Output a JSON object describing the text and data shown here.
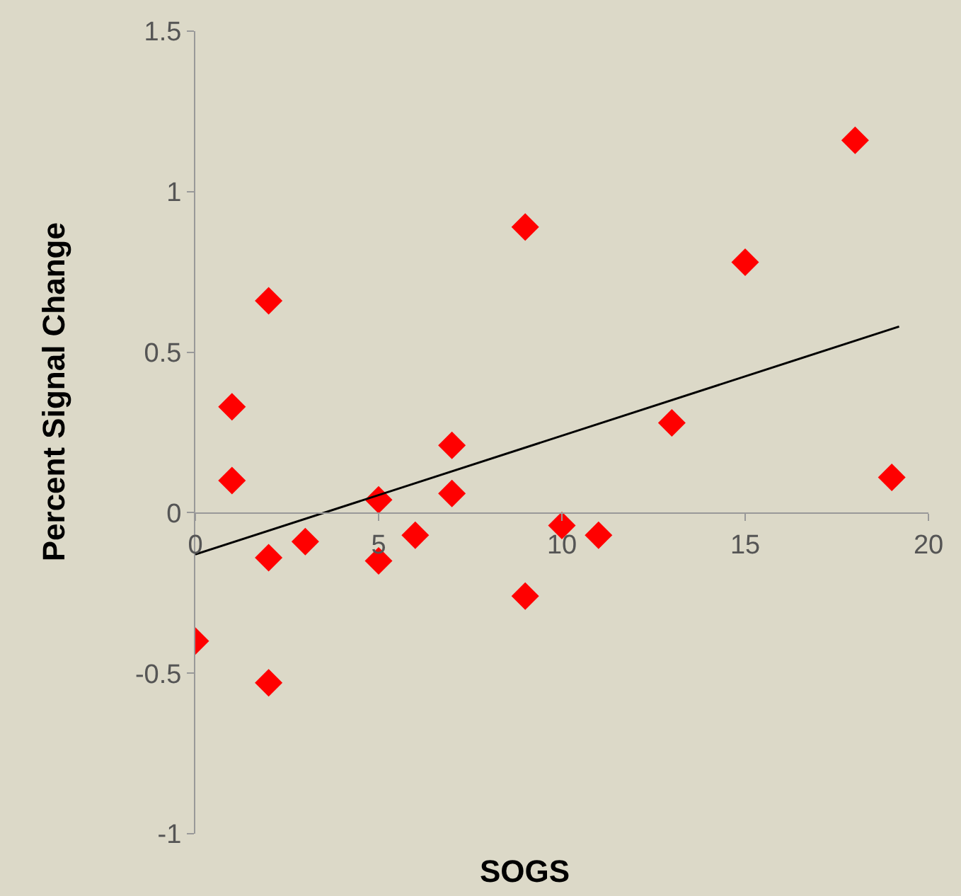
{
  "chart_data": {
    "type": "scatter",
    "xlabel": "SOGS",
    "ylabel": "Percent Signal Change",
    "xlim": [
      0,
      20
    ],
    "xticks": [
      0,
      5,
      10,
      15,
      20
    ],
    "ylim": [
      -1,
      1.5
    ],
    "yticks": [
      -1,
      -0.5,
      0,
      0.5,
      1,
      1.5
    ],
    "grid": false,
    "series": [
      {
        "marker": "diamond",
        "color": "#ff0000",
        "x": [
          0,
          1,
          1,
          2,
          2,
          2,
          3,
          5,
          5,
          6,
          7,
          7,
          9,
          9,
          10,
          11,
          13,
          15,
          18,
          19
        ],
        "values": [
          -0.4,
          0.33,
          0.1,
          0.66,
          -0.14,
          -0.53,
          -0.09,
          0.04,
          -0.15,
          -0.07,
          0.21,
          0.06,
          0.89,
          -0.26,
          -0.04,
          -0.07,
          0.28,
          0.78,
          1.16,
          0.11
        ]
      },
      {
        "type": "line",
        "color": "#000000",
        "x": [
          0,
          19.2
        ],
        "values": [
          -0.13,
          0.58
        ]
      }
    ]
  }
}
